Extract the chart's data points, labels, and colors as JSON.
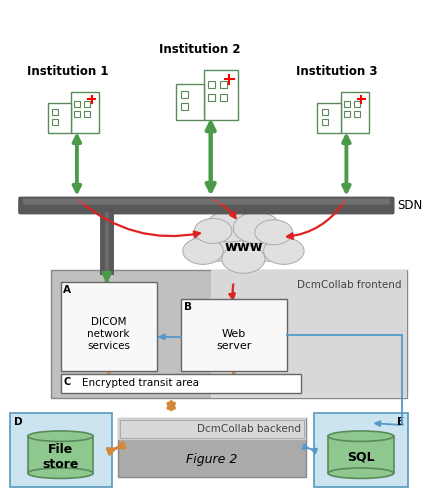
{
  "bg_color": "#ffffff",
  "institution_labels": [
    "Institution 1",
    "Institution 2",
    "Institution 3"
  ],
  "sdn_label": "SDN",
  "www_label": "www",
  "frontend_label": "DcmCollab frontend",
  "backend_label": "DcmCollab backend",
  "box_A_label": "A",
  "box_A_text": "DICOM\nnetwork\nservices",
  "box_B_label": "B",
  "box_B_text": "Web\nserver",
  "box_C_label": "C",
  "box_C_text": "Encrypted transit area",
  "box_D_label": "D",
  "box_D_text": "File\nstore",
  "box_E_label": "E",
  "box_E_text": "SQL",
  "fig2_text": "Figure 2",
  "green_color": "#4a9a4a",
  "red_color": "#dd2222",
  "orange_color": "#d4883a",
  "blue_color": "#5599cc",
  "sdn_bar_color": "#606060",
  "sdn_bar_color2": "#888888",
  "frontend_bg": "#c8c8c8",
  "frontend_bg2": "#e8e8e8",
  "backend_bg": "#aaaaaa",
  "backend_bg2": "#d0d0d0",
  "filestore_bg": "#cce4f0",
  "sql_bg": "#cce4f0",
  "box_fill": "#f8f8f8",
  "hospital_color": "#5a8a5a",
  "cloud_color": "#e0e0e0",
  "cloud_edge": "#aaaaaa",
  "cyl_color": "#8ec88e",
  "cyl_edge": "#5a8a5a"
}
